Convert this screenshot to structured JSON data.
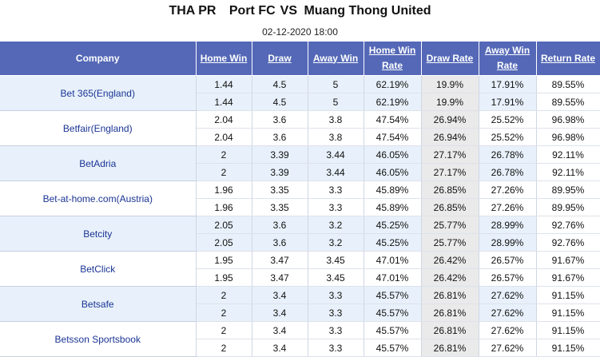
{
  "header": {
    "league": "THA PR",
    "home_team": "Port FC",
    "vs": "VS",
    "away_team": "Muang Thong United",
    "date": "02-12-2020 18:00"
  },
  "columns": [
    "Company",
    "Home Win",
    "Draw",
    "Away Win",
    "Home Win Rate",
    "Draw Rate",
    "Away Win Rate",
    "Return Rate"
  ],
  "rows": [
    {
      "company": "Bet 365(England)",
      "lines": [
        [
          "1.44",
          "4.5",
          "5",
          "62.19%",
          "19.9%",
          "17.91%",
          "89.55%"
        ],
        [
          "1.44",
          "4.5",
          "5",
          "62.19%",
          "19.9%",
          "17.91%",
          "89.55%"
        ]
      ]
    },
    {
      "company": "Betfair(England)",
      "lines": [
        [
          "2.04",
          "3.6",
          "3.8",
          "47.54%",
          "26.94%",
          "25.52%",
          "96.98%"
        ],
        [
          "2.04",
          "3.6",
          "3.8",
          "47.54%",
          "26.94%",
          "25.52%",
          "96.98%"
        ]
      ]
    },
    {
      "company": "BetAdria",
      "lines": [
        [
          "2",
          "3.39",
          "3.44",
          "46.05%",
          "27.17%",
          "26.78%",
          "92.11%"
        ],
        [
          "2",
          "3.39",
          "3.44",
          "46.05%",
          "27.17%",
          "26.78%",
          "92.11%"
        ]
      ]
    },
    {
      "company": "Bet-at-home.com(Austria)",
      "lines": [
        [
          "1.96",
          "3.35",
          "3.3",
          "45.89%",
          "26.85%",
          "27.26%",
          "89.95%"
        ],
        [
          "1.96",
          "3.35",
          "3.3",
          "45.89%",
          "26.85%",
          "27.26%",
          "89.95%"
        ]
      ]
    },
    {
      "company": "Betcity",
      "lines": [
        [
          "2.05",
          "3.6",
          "3.2",
          "45.25%",
          "25.77%",
          "28.99%",
          "92.76%"
        ],
        [
          "2.05",
          "3.6",
          "3.2",
          "45.25%",
          "25.77%",
          "28.99%",
          "92.76%"
        ]
      ]
    },
    {
      "company": "BetClick",
      "lines": [
        [
          "1.95",
          "3.47",
          "3.45",
          "47.01%",
          "26.42%",
          "26.57%",
          "91.67%"
        ],
        [
          "1.95",
          "3.47",
          "3.45",
          "47.01%",
          "26.42%",
          "26.57%",
          "91.67%"
        ]
      ]
    },
    {
      "company": "Betsafe",
      "lines": [
        [
          "2",
          "3.4",
          "3.3",
          "45.57%",
          "26.81%",
          "27.62%",
          "91.15%"
        ],
        [
          "2",
          "3.4",
          "3.3",
          "45.57%",
          "26.81%",
          "27.62%",
          "91.15%"
        ]
      ]
    },
    {
      "company": "Betsson Sportsbook",
      "lines": [
        [
          "2",
          "3.4",
          "3.3",
          "45.57%",
          "26.81%",
          "27.62%",
          "91.15%"
        ],
        [
          "2",
          "3.4",
          "3.3",
          "45.57%",
          "26.81%",
          "27.62%",
          "91.15%"
        ]
      ]
    }
  ]
}
